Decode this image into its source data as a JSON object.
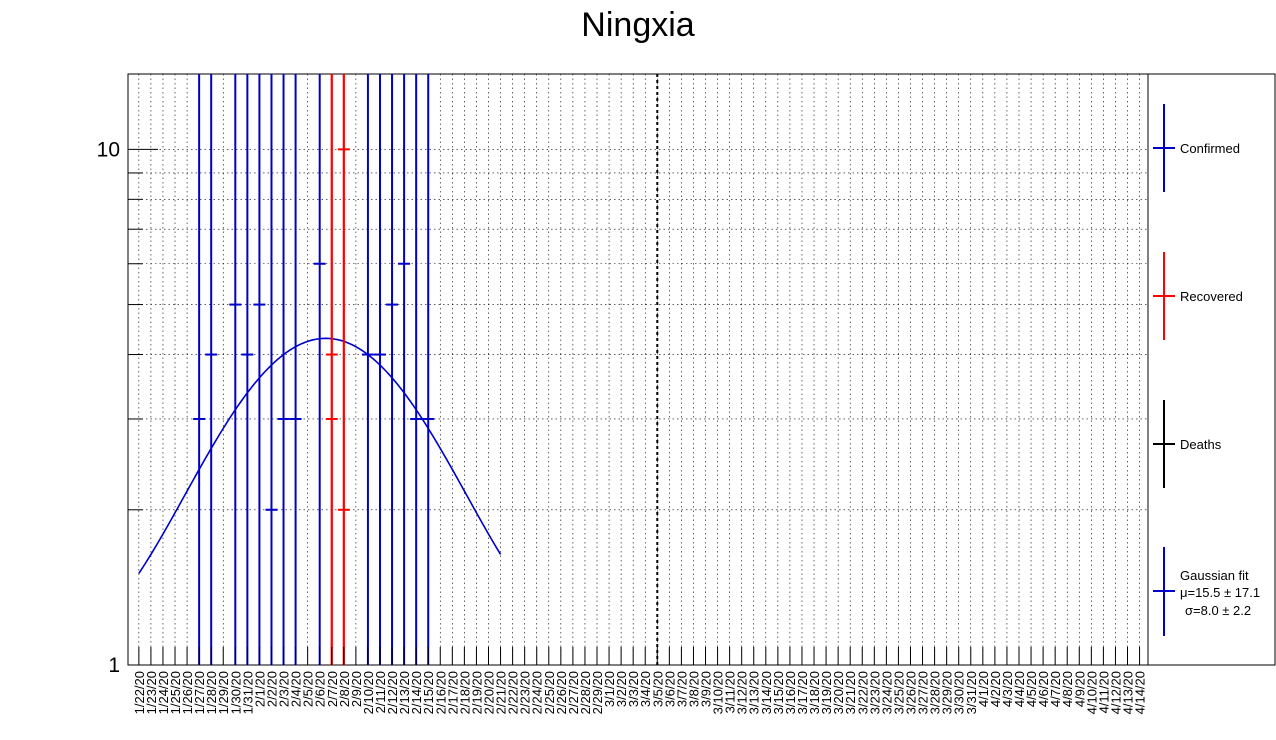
{
  "chart_data": {
    "type": "scatter",
    "title": "Ningxia",
    "xlabel": "",
    "ylabel": "",
    "yscale": "log",
    "ylim": [
      1,
      14
    ],
    "y_tick_labels": [
      {
        "value": 1,
        "label": "1"
      },
      {
        "value": 10,
        "label": "10"
      }
    ],
    "grid": true,
    "legend_position": "right",
    "categories": [
      "1/22/20",
      "1/23/20",
      "1/24/20",
      "1/25/20",
      "1/26/20",
      "1/27/20",
      "1/28/20",
      "1/29/20",
      "1/30/20",
      "1/31/20",
      "2/1/20",
      "2/2/20",
      "2/3/20",
      "2/4/20",
      "2/5/20",
      "2/6/20",
      "2/7/20",
      "2/8/20",
      "2/9/20",
      "2/10/20",
      "2/11/20",
      "2/12/20",
      "2/13/20",
      "2/14/20",
      "2/15/20",
      "2/16/20",
      "2/17/20",
      "2/18/20",
      "2/19/20",
      "2/20/20",
      "2/21/20",
      "2/22/20",
      "2/23/20",
      "2/24/20",
      "2/25/20",
      "2/26/20",
      "2/27/20",
      "2/28/20",
      "2/29/20",
      "3/1/20",
      "3/2/20",
      "3/3/20",
      "3/4/20",
      "3/5/20",
      "3/6/20",
      "3/7/20",
      "3/8/20",
      "3/9/20",
      "3/10/20",
      "3/11/20",
      "3/12/20",
      "3/13/20",
      "3/14/20",
      "3/15/20",
      "3/16/20",
      "3/17/20",
      "3/18/20",
      "3/19/20",
      "3/20/20",
      "3/21/20",
      "3/22/20",
      "3/23/20",
      "3/24/20",
      "3/25/20",
      "3/26/20",
      "3/27/20",
      "3/28/20",
      "3/29/20",
      "3/30/20",
      "3/31/20",
      "4/1/20",
      "4/2/20",
      "4/3/20",
      "4/4/20",
      "4/5/20",
      "4/6/20",
      "4/7/20",
      "4/8/20",
      "4/9/20",
      "4/10/20",
      "4/11/20",
      "4/12/20",
      "4/13/20",
      "4/14/20"
    ],
    "series": [
      {
        "name": "Confirmed",
        "color": "#0000cc",
        "points": [
          {
            "date": "1/27/20",
            "value": 3
          },
          {
            "date": "1/28/20",
            "value": 4
          },
          {
            "date": "1/30/20",
            "value": 5
          },
          {
            "date": "1/31/20",
            "value": 4
          },
          {
            "date": "2/1/20",
            "value": 5
          },
          {
            "date": "2/2/20",
            "value": 2
          },
          {
            "date": "2/3/20",
            "value": 3
          },
          {
            "date": "2/4/20",
            "value": 3
          },
          {
            "date": "2/6/20",
            "value": 6
          },
          {
            "date": "2/10/20",
            "value": 4
          },
          {
            "date": "2/11/20",
            "value": 4
          },
          {
            "date": "2/12/20",
            "value": 5
          },
          {
            "date": "2/13/20",
            "value": 6
          },
          {
            "date": "2/14/20",
            "value": 3
          },
          {
            "date": "2/15/20",
            "value": 3
          }
        ]
      },
      {
        "name": "Recovered",
        "color": "#ff0000",
        "points": [
          {
            "date": "2/7/20",
            "value": 4
          },
          {
            "date": "2/7/20",
            "value": 3
          },
          {
            "date": "2/8/20",
            "value": 10
          },
          {
            "date": "2/8/20",
            "value": 2
          }
        ]
      },
      {
        "name": "Deaths",
        "color": "#000000",
        "points": []
      }
    ],
    "fit": {
      "name": "Gaussian fit",
      "color": "#0000cc",
      "mu_label": "μ=15.5 ± 17.1",
      "sigma_label": "σ=8.0 ± 2.2"
    },
    "marker_line": {
      "date": "3/5/20",
      "style": "dotted"
    }
  },
  "legend": {
    "confirmed": "Confirmed",
    "recovered": "Recovered",
    "deaths": "Deaths",
    "fit_title": "Gaussian fit",
    "fit_mu": "μ=15.5 ± 17.1",
    "fit_sigma": "σ=8.0 ± 2.2"
  }
}
